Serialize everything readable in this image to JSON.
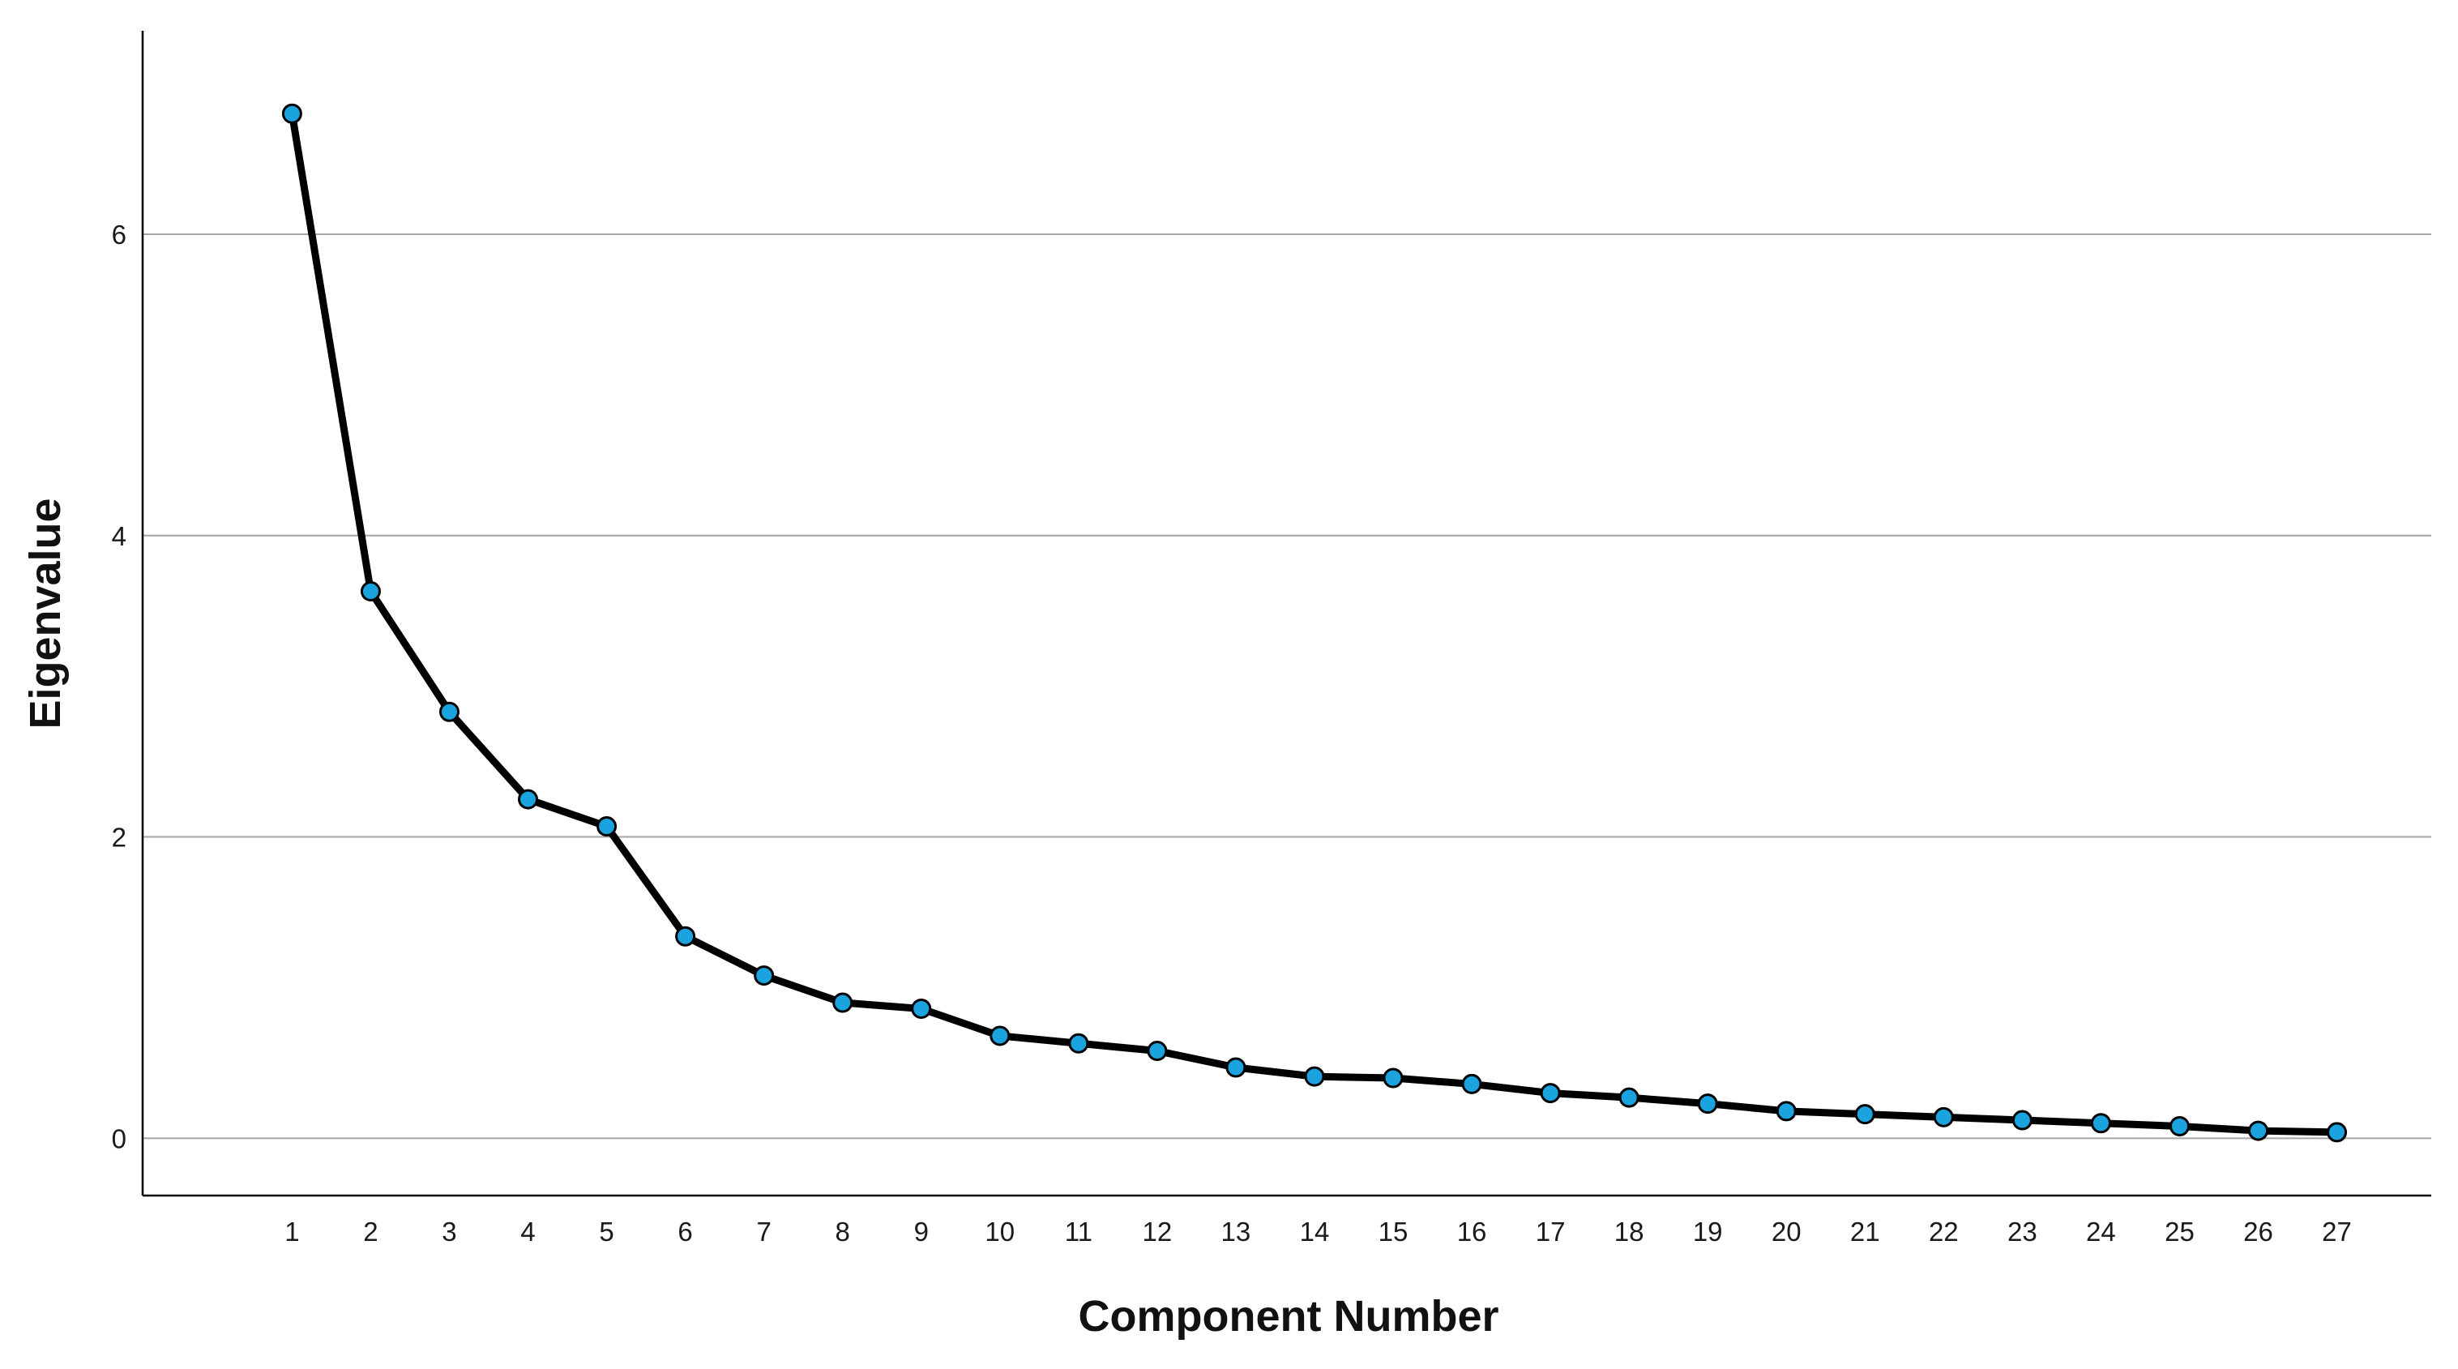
{
  "chart_data": {
    "type": "line",
    "title": "",
    "xlabel": "Component Number",
    "ylabel": "Eigenvalue",
    "x": [
      1,
      2,
      3,
      4,
      5,
      6,
      7,
      8,
      9,
      10,
      11,
      12,
      13,
      14,
      15,
      16,
      17,
      18,
      19,
      20,
      21,
      22,
      23,
      24,
      25,
      26,
      27
    ],
    "xtick_labels": [
      "1",
      "2",
      "3",
      "4",
      "5",
      "6",
      "7",
      "8",
      "9",
      "10",
      "11",
      "12",
      "13",
      "14",
      "15",
      "16",
      "17",
      "18",
      "19",
      "20",
      "21",
      "22",
      "23",
      "24",
      "25",
      "26",
      "27"
    ],
    "series": [
      {
        "values": [
          6.8,
          3.63,
          2.83,
          2.25,
          2.07,
          1.34,
          1.08,
          0.9,
          0.86,
          0.68,
          0.63,
          0.58,
          0.47,
          0.41,
          0.4,
          0.36,
          0.3,
          0.27,
          0.23,
          0.18,
          0.16,
          0.14,
          0.12,
          0.1,
          0.08,
          0.05,
          0.04
        ],
        "line_color": "#000000",
        "marker_color": "#1ba3e0"
      }
    ],
    "xlim": [
      -0.9,
      28.2
    ],
    "ylim": [
      -0.38,
      7.35
    ],
    "yticks": [
      0,
      2,
      4,
      6
    ],
    "ytick_labels": [
      "0",
      "2",
      "4",
      "6"
    ],
    "grid": "horizontal",
    "legend": "none"
  }
}
